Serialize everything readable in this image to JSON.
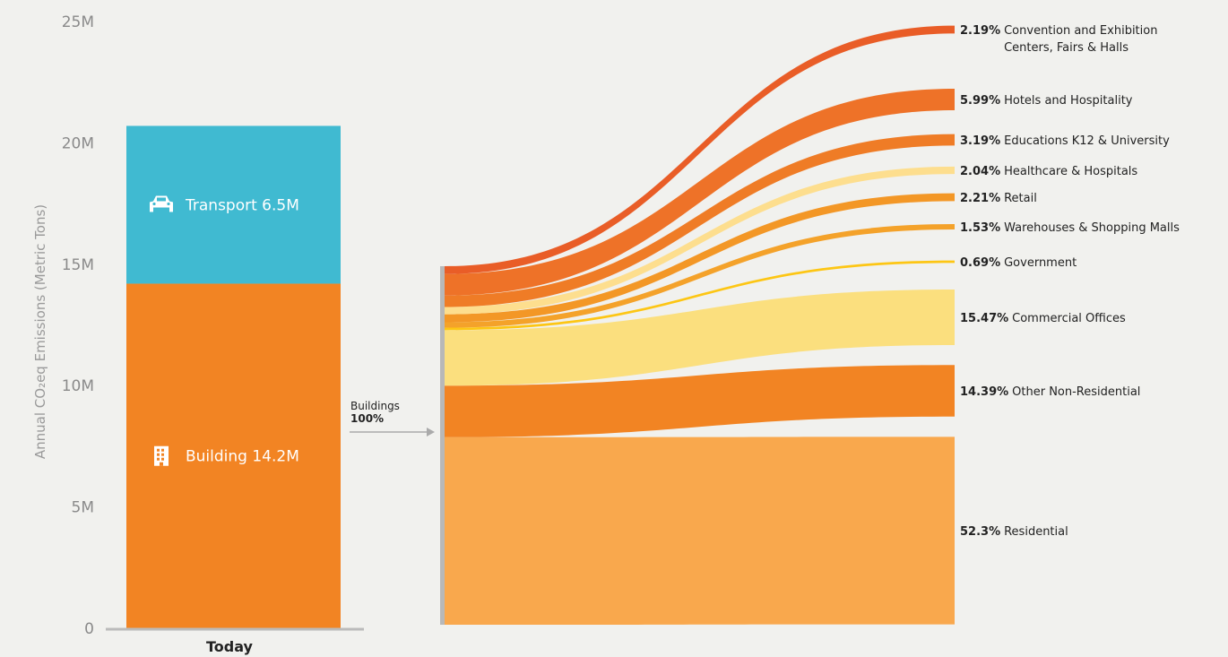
{
  "chart_data": [
    {
      "type": "bar",
      "stacked": true,
      "categories": [
        "Today"
      ],
      "ylabel": "Annual CO₂eq Emissions (Metric Tons)",
      "ylim": [
        0,
        25000000
      ],
      "yticks": [
        {
          "value": 0,
          "label": "0"
        },
        {
          "value": 5000000,
          "label": "5M"
        },
        {
          "value": 10000000,
          "label": "10M"
        },
        {
          "value": 15000000,
          "label": "15M"
        },
        {
          "value": 20000000,
          "label": "20M"
        },
        {
          "value": 25000000,
          "label": "25M"
        }
      ],
      "series": [
        {
          "name": "Building",
          "label": "Building 14.2M",
          "values": [
            14200000
          ],
          "color": "#f28423",
          "icon": "building-icon"
        },
        {
          "name": "Transport",
          "label": "Transport 6.5M",
          "values": [
            6500000
          ],
          "color": "#40bad1",
          "icon": "car-icon"
        }
      ],
      "grid": false,
      "legend": "none"
    },
    {
      "type": "sankey",
      "source": {
        "label": "Buildings",
        "percent": "100%",
        "color": "#b8b8b8"
      },
      "flows": [
        {
          "percent": "52.3%",
          "name": "Residential",
          "value": 52.3,
          "color": "#f9a84d"
        },
        {
          "percent": "14.39%",
          "name": "Other Non-Residential",
          "value": 14.39,
          "color": "#f28423"
        },
        {
          "percent": "15.47%",
          "name": "Commercial Offices",
          "value": 15.47,
          "color": "#fbdf7e"
        },
        {
          "percent": "0.69%",
          "name": "Government",
          "value": 0.69,
          "color": "#fdc614"
        },
        {
          "percent": "1.53%",
          "name": "Warehouses & Shopping Malls",
          "value": 1.53,
          "color": "#f4a22a"
        },
        {
          "percent": "2.21%",
          "name": "Retail",
          "value": 2.21,
          "color": "#f39726"
        },
        {
          "percent": "2.04%",
          "name": "Healthcare & Hospitals",
          "value": 2.04,
          "color": "#fdde8e"
        },
        {
          "percent": "3.19%",
          "name": "Educations K12 & University",
          "value": 3.19,
          "color": "#ef7c26"
        },
        {
          "percent": "5.99%",
          "name": "Hotels and Hospitality",
          "value": 5.99,
          "color": "#ee7228"
        },
        {
          "percent": "2.19%",
          "name": "Convention and Exhibition Centers, Fairs & Halls",
          "name_lines": [
            "Convention and Exhibition",
            "Centers, Fairs & Halls"
          ],
          "value": 2.19,
          "color": "#e95d27"
        }
      ]
    }
  ]
}
